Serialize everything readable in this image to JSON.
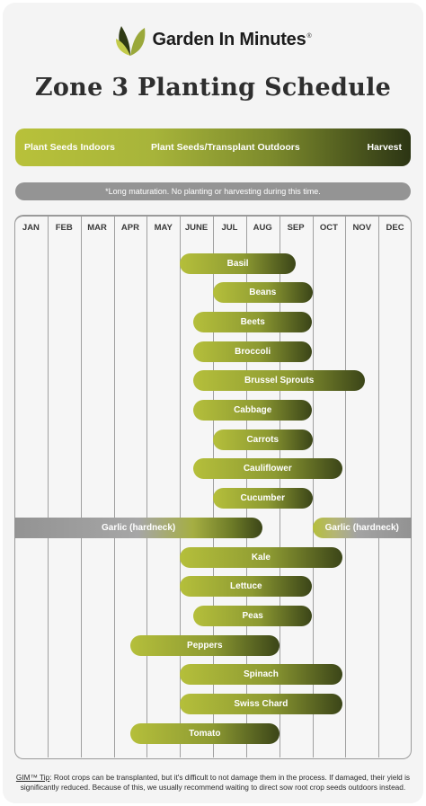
{
  "brand": {
    "name": "Garden In Minutes",
    "trademark": "®"
  },
  "title": "Zone 3 Planting Schedule",
  "legend": {
    "indoors": "Plant Seeds Indoors",
    "outdoors": "Plant Seeds/Transplant Outdoors",
    "harvest": "Harvest"
  },
  "maturation_note": "*Long maturation. No planting or harvesting during this time.",
  "footer": {
    "tip_label": "GIM™ Tip",
    "tip_text": ": Root crops can be transplanted, but it's difficult to not damage them in the process. If damaged, their yield is significantly reduced. Because of this, we usually recommend waiting to direct sow root crop seeds outdoors instead."
  },
  "colors": {
    "light_green": "#b5bf3b",
    "dark_green": "#3b4518",
    "grey": "#949494"
  },
  "chart_data": {
    "type": "gantt",
    "months": [
      "JAN",
      "FEB",
      "MAR",
      "APR",
      "MAY",
      "JUNE",
      "JUL",
      "AUG",
      "SEP",
      "OCT",
      "NOV",
      "DEC"
    ],
    "crops": [
      {
        "name": "Basil",
        "start": 5.0,
        "end": 8.5
      },
      {
        "name": "Beans",
        "start": 6.0,
        "end": 9.0
      },
      {
        "name": "Beets",
        "start": 5.4,
        "end": 9.0
      },
      {
        "name": "Broccoli",
        "start": 5.4,
        "end": 9.0
      },
      {
        "name": "Brussel Sprouts",
        "start": 5.4,
        "end": 10.6
      },
      {
        "name": "Cabbage",
        "start": 5.4,
        "end": 9.0
      },
      {
        "name": "Carrots",
        "start": 6.0,
        "end": 9.0
      },
      {
        "name": "Cauliflower",
        "start": 5.4,
        "end": 9.9
      },
      {
        "name": "Cucumber",
        "start": 6.0,
        "end": 9.0
      },
      {
        "name": "Garlic (hardneck)",
        "start": 0.0,
        "end": 7.5,
        "style": "winter-harvest"
      },
      {
        "name": "Garlic (hardneck)",
        "start": 9.0,
        "end": 12.0,
        "style": "fall-plant"
      },
      {
        "name": "Kale",
        "start": 5.0,
        "end": 9.9
      },
      {
        "name": "Lettuce",
        "start": 5.0,
        "end": 9.0
      },
      {
        "name": "Peas",
        "start": 5.4,
        "end": 9.0
      },
      {
        "name": "Peppers",
        "start": 3.5,
        "end": 8.0
      },
      {
        "name": "Spinach",
        "start": 5.0,
        "end": 9.9
      },
      {
        "name": "Swiss Chard",
        "start": 5.0,
        "end": 9.9
      },
      {
        "name": "Tomato",
        "start": 3.5,
        "end": 8.0
      }
    ]
  }
}
